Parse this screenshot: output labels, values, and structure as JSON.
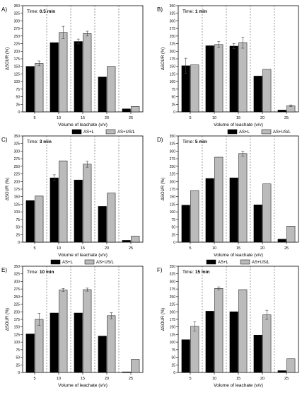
{
  "chart_data": [
    {
      "panel_label": "A)",
      "time_prefix": "Time: ",
      "time_value": "0.5 min",
      "type": "bar",
      "categories": [
        "5",
        "10",
        "15",
        "20",
        "25"
      ],
      "series": [
        {
          "name": "AS+L",
          "color": "#000000",
          "values": [
            150,
            228,
            232,
            115,
            10
          ],
          "errors": [
            0,
            0,
            8,
            0,
            0
          ]
        },
        {
          "name": "AS+US/L",
          "color": "#bbbbbb",
          "values": [
            160,
            262,
            258,
            150,
            18
          ],
          "errors": [
            8,
            20,
            8,
            0,
            0
          ]
        }
      ],
      "xlabel": "Volume of leachate (v/v)",
      "ylabel": "ΔSOUR (%)",
      "ylim": [
        0,
        350
      ],
      "yticks": [
        0,
        25,
        50,
        75,
        100,
        125,
        150,
        175,
        200,
        225,
        250,
        275,
        300,
        325,
        350
      ],
      "legend_position": "bottom-right"
    },
    {
      "panel_label": "B)",
      "time_prefix": "Time: ",
      "time_value": "1 min",
      "type": "bar",
      "categories": [
        "5",
        "10",
        "15",
        "20",
        "25"
      ],
      "series": [
        {
          "name": "AS+L",
          "color": "#000000",
          "values": [
            152,
            218,
            217,
            118,
            6
          ],
          "errors": [
            25,
            0,
            8,
            0,
            0
          ]
        },
        {
          "name": "AS+US/L",
          "color": "#bbbbbb",
          "values": [
            155,
            222,
            228,
            140,
            20
          ],
          "errors": [
            0,
            10,
            18,
            0,
            3
          ]
        }
      ],
      "xlabel": "Volume of leachate (v/v)",
      "ylabel": "ΔSOUR (%)",
      "ylim": [
        0,
        350
      ],
      "yticks": [
        0,
        25,
        50,
        75,
        100,
        125,
        150,
        175,
        200,
        225,
        250,
        275,
        300,
        325,
        350
      ],
      "legend_position": "bottom-right"
    },
    {
      "panel_label": "C)",
      "time_prefix": "Time: ",
      "time_value": "3 min",
      "type": "bar",
      "categories": [
        "5",
        "10",
        "15",
        "20",
        "25"
      ],
      "series": [
        {
          "name": "AS+L",
          "color": "#000000",
          "values": [
            137,
            212,
            205,
            118,
            6
          ],
          "errors": [
            0,
            10,
            0,
            0,
            0
          ]
        },
        {
          "name": "AS+US/L",
          "color": "#bbbbbb",
          "values": [
            152,
            268,
            257,
            162,
            20
          ],
          "errors": [
            0,
            0,
            10,
            0,
            0
          ]
        }
      ],
      "xlabel": "Volume of leachate (v/v)",
      "ylabel": "ΔSOUR (%)",
      "ylim": [
        0,
        350
      ],
      "yticks": [
        0,
        25,
        50,
        75,
        100,
        125,
        150,
        175,
        200,
        225,
        250,
        275,
        300,
        325,
        350
      ],
      "legend_position": "bottom-left"
    },
    {
      "panel_label": "D)",
      "time_prefix": "Time: ",
      "time_value": "5 min",
      "type": "bar",
      "categories": [
        "5",
        "10",
        "15",
        "20",
        "25"
      ],
      "series": [
        {
          "name": "AS+L",
          "color": "#000000",
          "values": [
            122,
            210,
            212,
            123,
            10
          ],
          "errors": [
            0,
            0,
            0,
            0,
            0
          ]
        },
        {
          "name": "AS+US/L",
          "color": "#bbbbbb",
          "values": [
            170,
            280,
            292,
            192,
            53
          ],
          "errors": [
            0,
            0,
            8,
            0,
            0
          ]
        }
      ],
      "xlabel": "Volume of leachate (v/v)",
      "ylabel": "ΔSOUR (%)",
      "ylim": [
        0,
        350
      ],
      "yticks": [
        0,
        25,
        50,
        75,
        100,
        125,
        150,
        175,
        200,
        225,
        250,
        275,
        300,
        325,
        350
      ],
      "legend_position": "bottom-left"
    },
    {
      "panel_label": "E)",
      "time_prefix": "Time: ",
      "time_value": "10 min",
      "type": "bar",
      "categories": [
        "5",
        "10",
        "15",
        "20",
        "25"
      ],
      "series": [
        {
          "name": "AS+L",
          "color": "#000000",
          "values": [
            127,
            196,
            196,
            120,
            2
          ],
          "errors": [
            0,
            0,
            0,
            0,
            0
          ]
        },
        {
          "name": "AS+US/L",
          "color": "#bbbbbb",
          "values": [
            175,
            272,
            273,
            187,
            43
          ],
          "errors": [
            20,
            5,
            5,
            10,
            0
          ]
        }
      ],
      "xlabel": "Volume of leachate (v/v)",
      "ylabel": "ΔSOUR (%)",
      "ylim": [
        0,
        350
      ],
      "yticks": [
        0,
        25,
        50,
        75,
        100,
        125,
        150,
        175,
        200,
        225,
        250,
        275,
        300,
        325,
        350
      ],
      "legend_position": "bottom-left"
    },
    {
      "panel_label": "F)",
      "time_prefix": "Time: ",
      "time_value": "15 min",
      "type": "bar",
      "categories": [
        "5",
        "10",
        "15",
        "20",
        "25"
      ],
      "series": [
        {
          "name": "AS+L",
          "color": "#000000",
          "values": [
            108,
            202,
            200,
            123,
            6
          ],
          "errors": [
            0,
            0,
            0,
            0,
            0
          ]
        },
        {
          "name": "AS+US/L",
          "color": "#bbbbbb",
          "values": [
            152,
            277,
            273,
            190,
            45
          ],
          "errors": [
            15,
            5,
            0,
            15,
            0
          ]
        }
      ],
      "xlabel": "Volume of leachate (v/v)",
      "ylabel": "ΔSOUR (%)",
      "ylim": [
        0,
        350
      ],
      "yticks": [
        0,
        25,
        50,
        75,
        100,
        125,
        150,
        175,
        200,
        225,
        250,
        275,
        300,
        325,
        350
      ],
      "legend_position": "bottom-left"
    }
  ]
}
